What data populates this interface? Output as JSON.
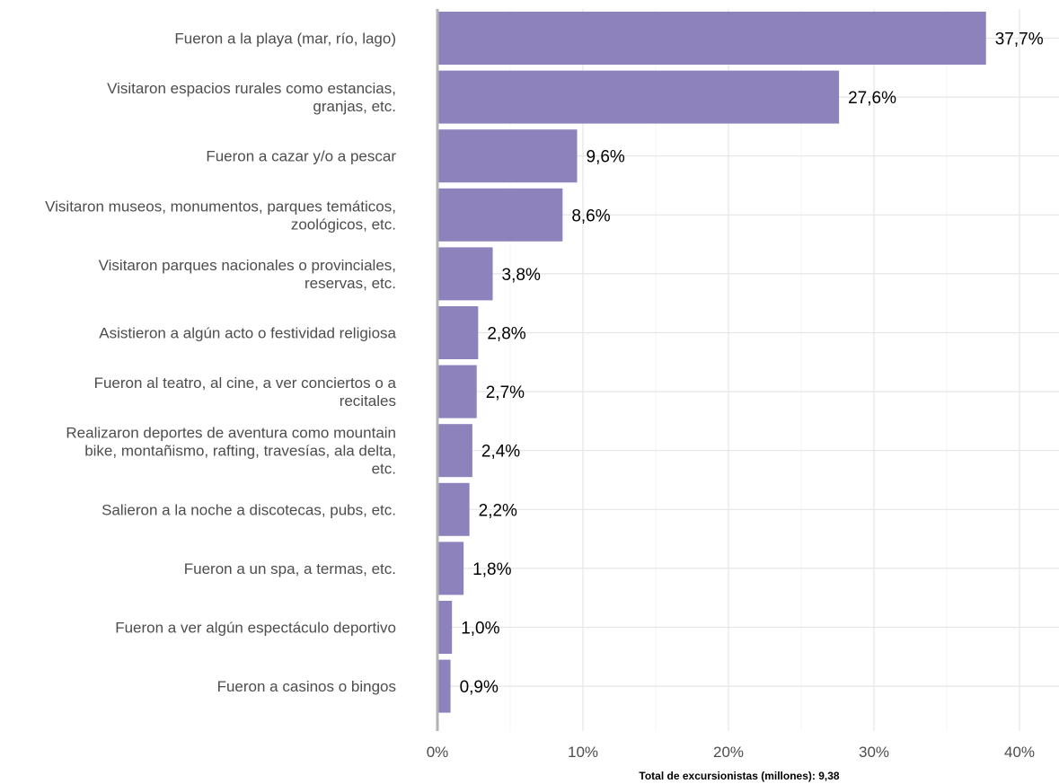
{
  "chart_data": {
    "type": "bar",
    "orientation": "horizontal",
    "title": "",
    "xlabel": "Total de excursionistas (millones): 9,38",
    "ylabel": "",
    "xlim": [
      0,
      42
    ],
    "x_ticks": [
      {
        "value": 0,
        "label": "0%"
      },
      {
        "value": 10,
        "label": "10%"
      },
      {
        "value": 20,
        "label": "20%"
      },
      {
        "value": 30,
        "label": "30%"
      },
      {
        "value": 40,
        "label": "40%"
      }
    ],
    "grid": true,
    "bar_color": "#8e82bd",
    "categories": [
      [
        "Fueron a la playa (mar, río, lago)"
      ],
      [
        "Visitaron espacios rurales como estancias,",
        "granjas, etc."
      ],
      [
        "Fueron a cazar y/o a pescar"
      ],
      [
        "Visitaron museos, monumentos, parques temáticos,",
        "zoológicos, etc."
      ],
      [
        "Visitaron parques nacionales o provinciales,",
        "reservas, etc."
      ],
      [
        "Asistieron a algún acto o festividad religiosa"
      ],
      [
        "Fueron al teatro, al cine, a ver conciertos o a",
        "recitales"
      ],
      [
        "Realizaron deportes de aventura como mountain",
        "bike, montañismo, rafting, travesías, ala delta,",
        "etc."
      ],
      [
        "Salieron a la noche a discotecas, pubs, etc."
      ],
      [
        "Fueron a un spa, a termas, etc."
      ],
      [
        "Fueron a ver algún espectáculo deportivo"
      ],
      [
        "Fueron a casinos o bingos"
      ]
    ],
    "values": [
      37.7,
      27.6,
      9.6,
      8.6,
      3.8,
      2.8,
      2.7,
      2.4,
      2.2,
      1.8,
      1.0,
      0.9
    ],
    "value_labels": [
      "37,7%",
      "27,6%",
      "9,6%",
      "8,6%",
      "3,8%",
      "2,8%",
      "2,7%",
      "2,4%",
      "2,2%",
      "1,8%",
      "1,0%",
      "0,9%"
    ]
  }
}
